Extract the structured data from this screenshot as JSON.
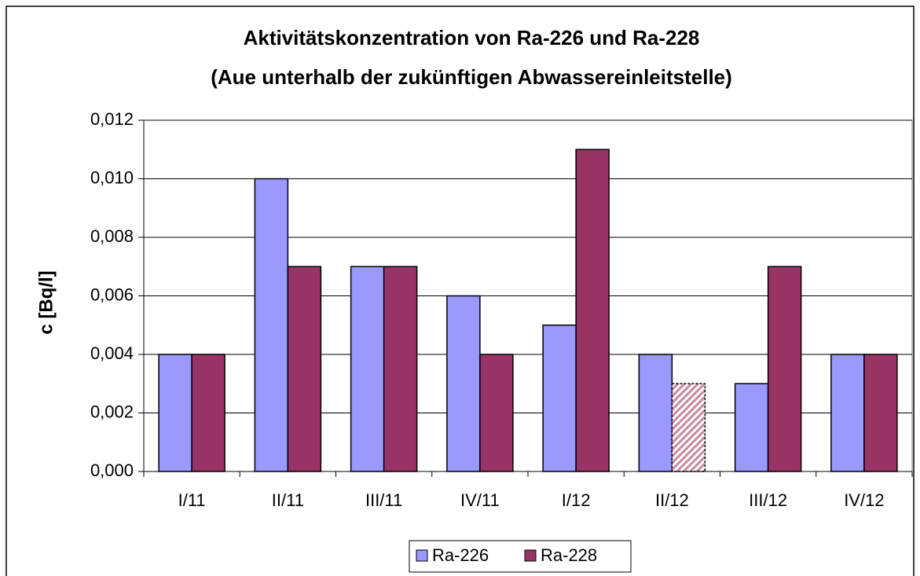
{
  "chart_data": {
    "type": "bar",
    "title": [
      "Aktivitätskonzentration von Ra-226 und Ra-228",
      "(Aue unterhalb der zukünftigen Abwassereinleitstelle)"
    ],
    "y_label": "c [Bq/l]",
    "categories": [
      "I/11",
      "II/11",
      "III/11",
      "IV/11",
      "I/12",
      "II/12",
      "III/12",
      "IV/12"
    ],
    "series": [
      {
        "name": "Ra-226",
        "color": "#9999ff",
        "values": [
          0.004,
          0.01,
          0.007,
          0.006,
          0.005,
          0.004,
          0.003,
          0.004
        ]
      },
      {
        "name": "Ra-228",
        "color": "#993366",
        "values": [
          0.004,
          0.007,
          0.007,
          0.004,
          0.011,
          0.003,
          0.007,
          0.004
        ],
        "hatched_points": [
          5
        ]
      }
    ],
    "ylim": [
      0,
      0.012
    ],
    "yticks": [
      {
        "value": 0,
        "label": "0,000"
      },
      {
        "value": 0.002,
        "label": "0,002"
      },
      {
        "value": 0.004,
        "label": "0,004"
      },
      {
        "value": 0.006,
        "label": "0,006"
      },
      {
        "value": 0.008,
        "label": "0,008"
      },
      {
        "value": 0.01,
        "label": "0,010"
      },
      {
        "value": 0.012,
        "label": "0,012"
      }
    ],
    "grid": true,
    "legend": "bottom"
  }
}
